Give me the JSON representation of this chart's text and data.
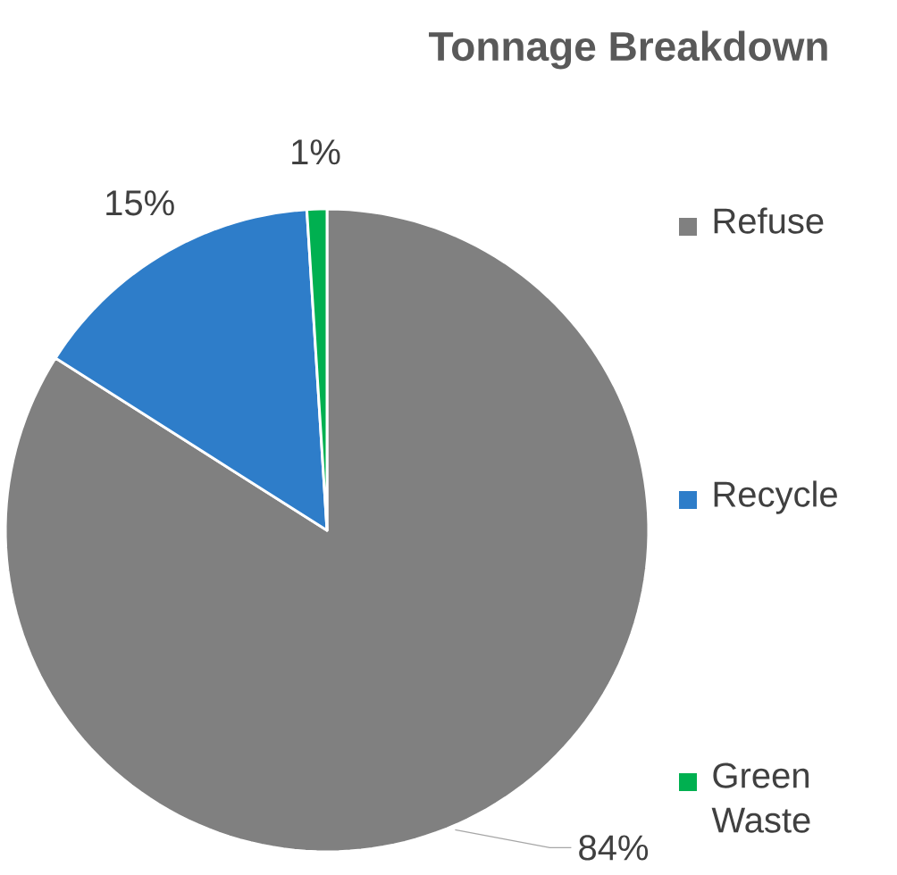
{
  "chart_data": {
    "type": "pie",
    "title": "Tonnage Breakdown",
    "categories": [
      "Refuse",
      "Recycle",
      "Green Waste"
    ],
    "values": [
      84,
      15,
      1
    ],
    "value_labels": [
      "84%",
      "15%",
      "1%"
    ],
    "colors": [
      "#808080",
      "#2e7dc9",
      "#00b050"
    ],
    "legend": "right"
  }
}
